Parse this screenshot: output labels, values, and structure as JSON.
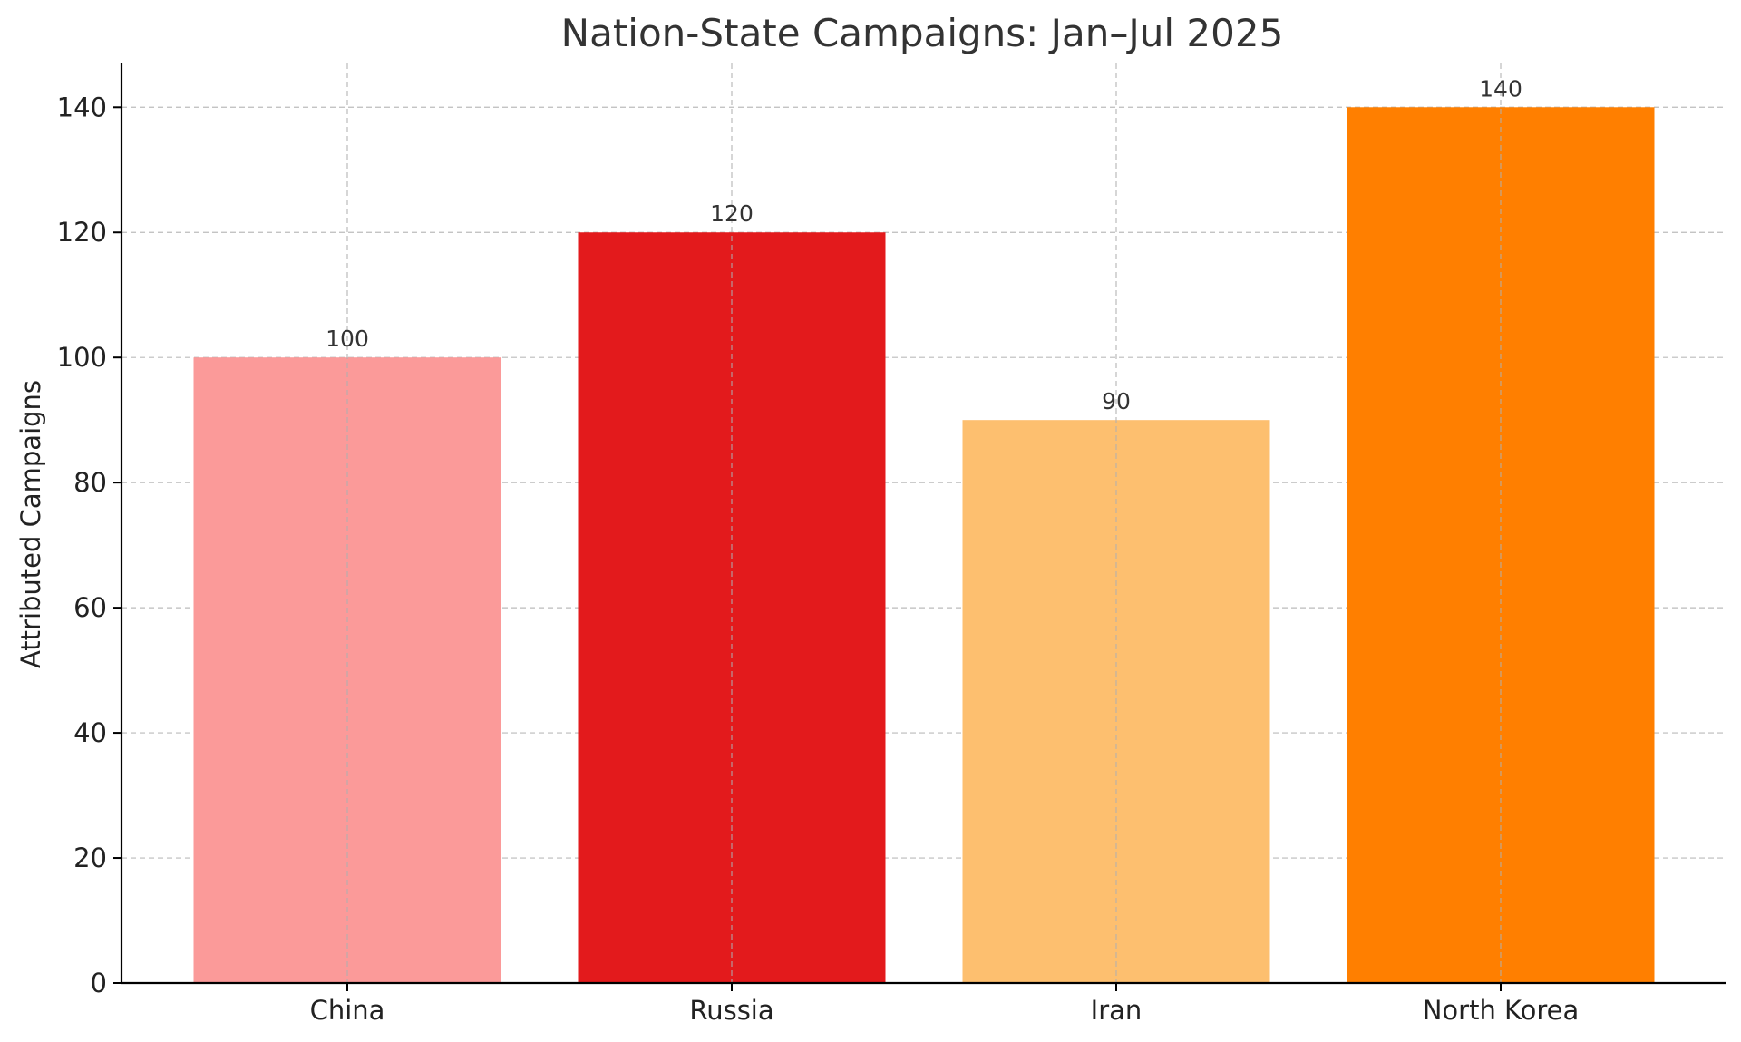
{
  "chart_data": {
    "type": "bar",
    "title": "Nation-State Campaigns: Jan–Jul 2025",
    "xlabel": "",
    "ylabel": "Attributed Campaigns",
    "categories": [
      "China",
      "Russia",
      "Iran",
      "North Korea"
    ],
    "values": [
      100,
      120,
      90,
      140
    ],
    "colors": [
      "#fb9a99",
      "#e31a1c",
      "#fdbf6f",
      "#ff7f00"
    ],
    "ylim": [
      0,
      147
    ],
    "yticks": [
      0,
      20,
      40,
      60,
      80,
      100,
      120,
      140
    ],
    "grid": true,
    "data_labels": true
  }
}
